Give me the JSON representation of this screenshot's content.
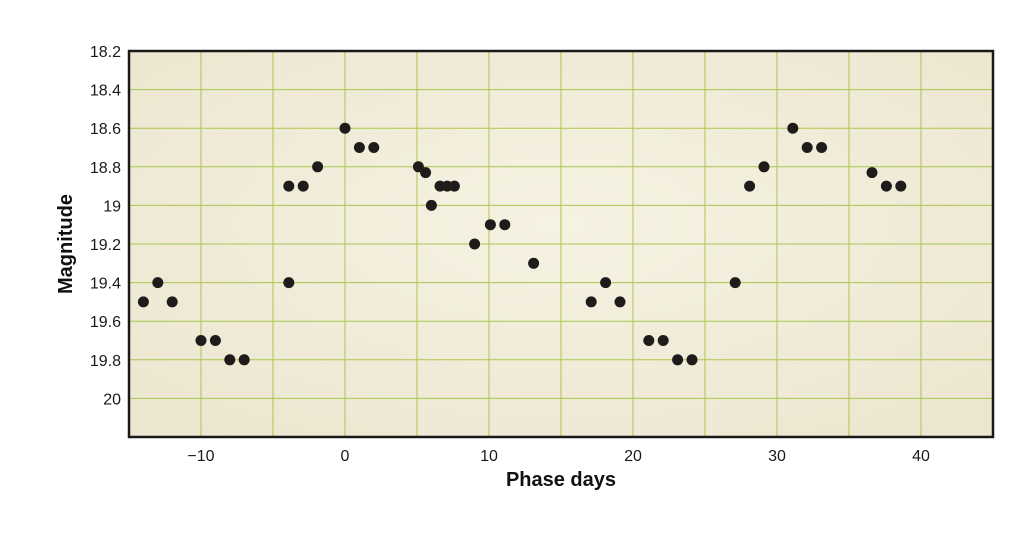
{
  "chart_data": {
    "type": "scatter",
    "title": "",
    "xlabel": "Phase days",
    "ylabel": "Magnitude",
    "xlim": [
      -15,
      45
    ],
    "ylim": [
      18.2,
      20.2
    ],
    "y_inverted": true,
    "grid": true,
    "x_ticks": [
      {
        "value": -10,
        "label": "−10"
      },
      {
        "value": 0,
        "label": "0"
      },
      {
        "value": 10,
        "label": "10"
      },
      {
        "value": 20,
        "label": "20"
      },
      {
        "value": 30,
        "label": "30"
      },
      {
        "value": 40,
        "label": "40"
      }
    ],
    "y_ticks": [
      {
        "value": 18.2,
        "label": "18.2"
      },
      {
        "value": 18.4,
        "label": "18.4"
      },
      {
        "value": 18.6,
        "label": "18.6"
      },
      {
        "value": 18.8,
        "label": "18.8"
      },
      {
        "value": 19.0,
        "label": "19"
      },
      {
        "value": 19.2,
        "label": "19.2"
      },
      {
        "value": 19.4,
        "label": "19.4"
      },
      {
        "value": 19.6,
        "label": "19.6"
      },
      {
        "value": 19.8,
        "label": "19.8"
      },
      {
        "value": 20.0,
        "label": "20"
      }
    ],
    "points": [
      {
        "x": -14,
        "y": 19.5
      },
      {
        "x": -13,
        "y": 19.4
      },
      {
        "x": -12,
        "y": 19.5
      },
      {
        "x": -10,
        "y": 19.7
      },
      {
        "x": -9,
        "y": 19.7
      },
      {
        "x": -8,
        "y": 19.8
      },
      {
        "x": -7,
        "y": 19.8
      },
      {
        "x": -3.9,
        "y": 18.9
      },
      {
        "x": -3.9,
        "y": 19.4
      },
      {
        "x": -2.9,
        "y": 18.9
      },
      {
        "x": -1.9,
        "y": 18.8
      },
      {
        "x": 0,
        "y": 18.6
      },
      {
        "x": 1,
        "y": 18.7
      },
      {
        "x": 2,
        "y": 18.7
      },
      {
        "x": 5.1,
        "y": 18.8
      },
      {
        "x": 5.6,
        "y": 18.83
      },
      {
        "x": 6,
        "y": 19.0
      },
      {
        "x": 6.6,
        "y": 18.9
      },
      {
        "x": 7.1,
        "y": 18.9
      },
      {
        "x": 7.6,
        "y": 18.9
      },
      {
        "x": 9,
        "y": 19.2
      },
      {
        "x": 10.1,
        "y": 19.1
      },
      {
        "x": 11.1,
        "y": 19.1
      },
      {
        "x": 13.1,
        "y": 19.3
      },
      {
        "x": 17.1,
        "y": 19.5
      },
      {
        "x": 18.1,
        "y": 19.4
      },
      {
        "x": 19.1,
        "y": 19.5
      },
      {
        "x": 21.1,
        "y": 19.7
      },
      {
        "x": 22.1,
        "y": 19.7
      },
      {
        "x": 23.1,
        "y": 19.8
      },
      {
        "x": 24.1,
        "y": 19.8
      },
      {
        "x": 27.1,
        "y": 19.4
      },
      {
        "x": 28.1,
        "y": 18.9
      },
      {
        "x": 29.1,
        "y": 18.8
      },
      {
        "x": 31.1,
        "y": 18.6
      },
      {
        "x": 32.1,
        "y": 18.7
      },
      {
        "x": 33.1,
        "y": 18.7
      },
      {
        "x": 36.6,
        "y": 18.83
      },
      {
        "x": 37.6,
        "y": 18.9
      },
      {
        "x": 38.6,
        "y": 18.9
      }
    ],
    "colors": {
      "background": "#f3eedc",
      "grid": "#a9c64e",
      "frame": "#1a1a1a",
      "point": "#1e1b1a"
    }
  }
}
